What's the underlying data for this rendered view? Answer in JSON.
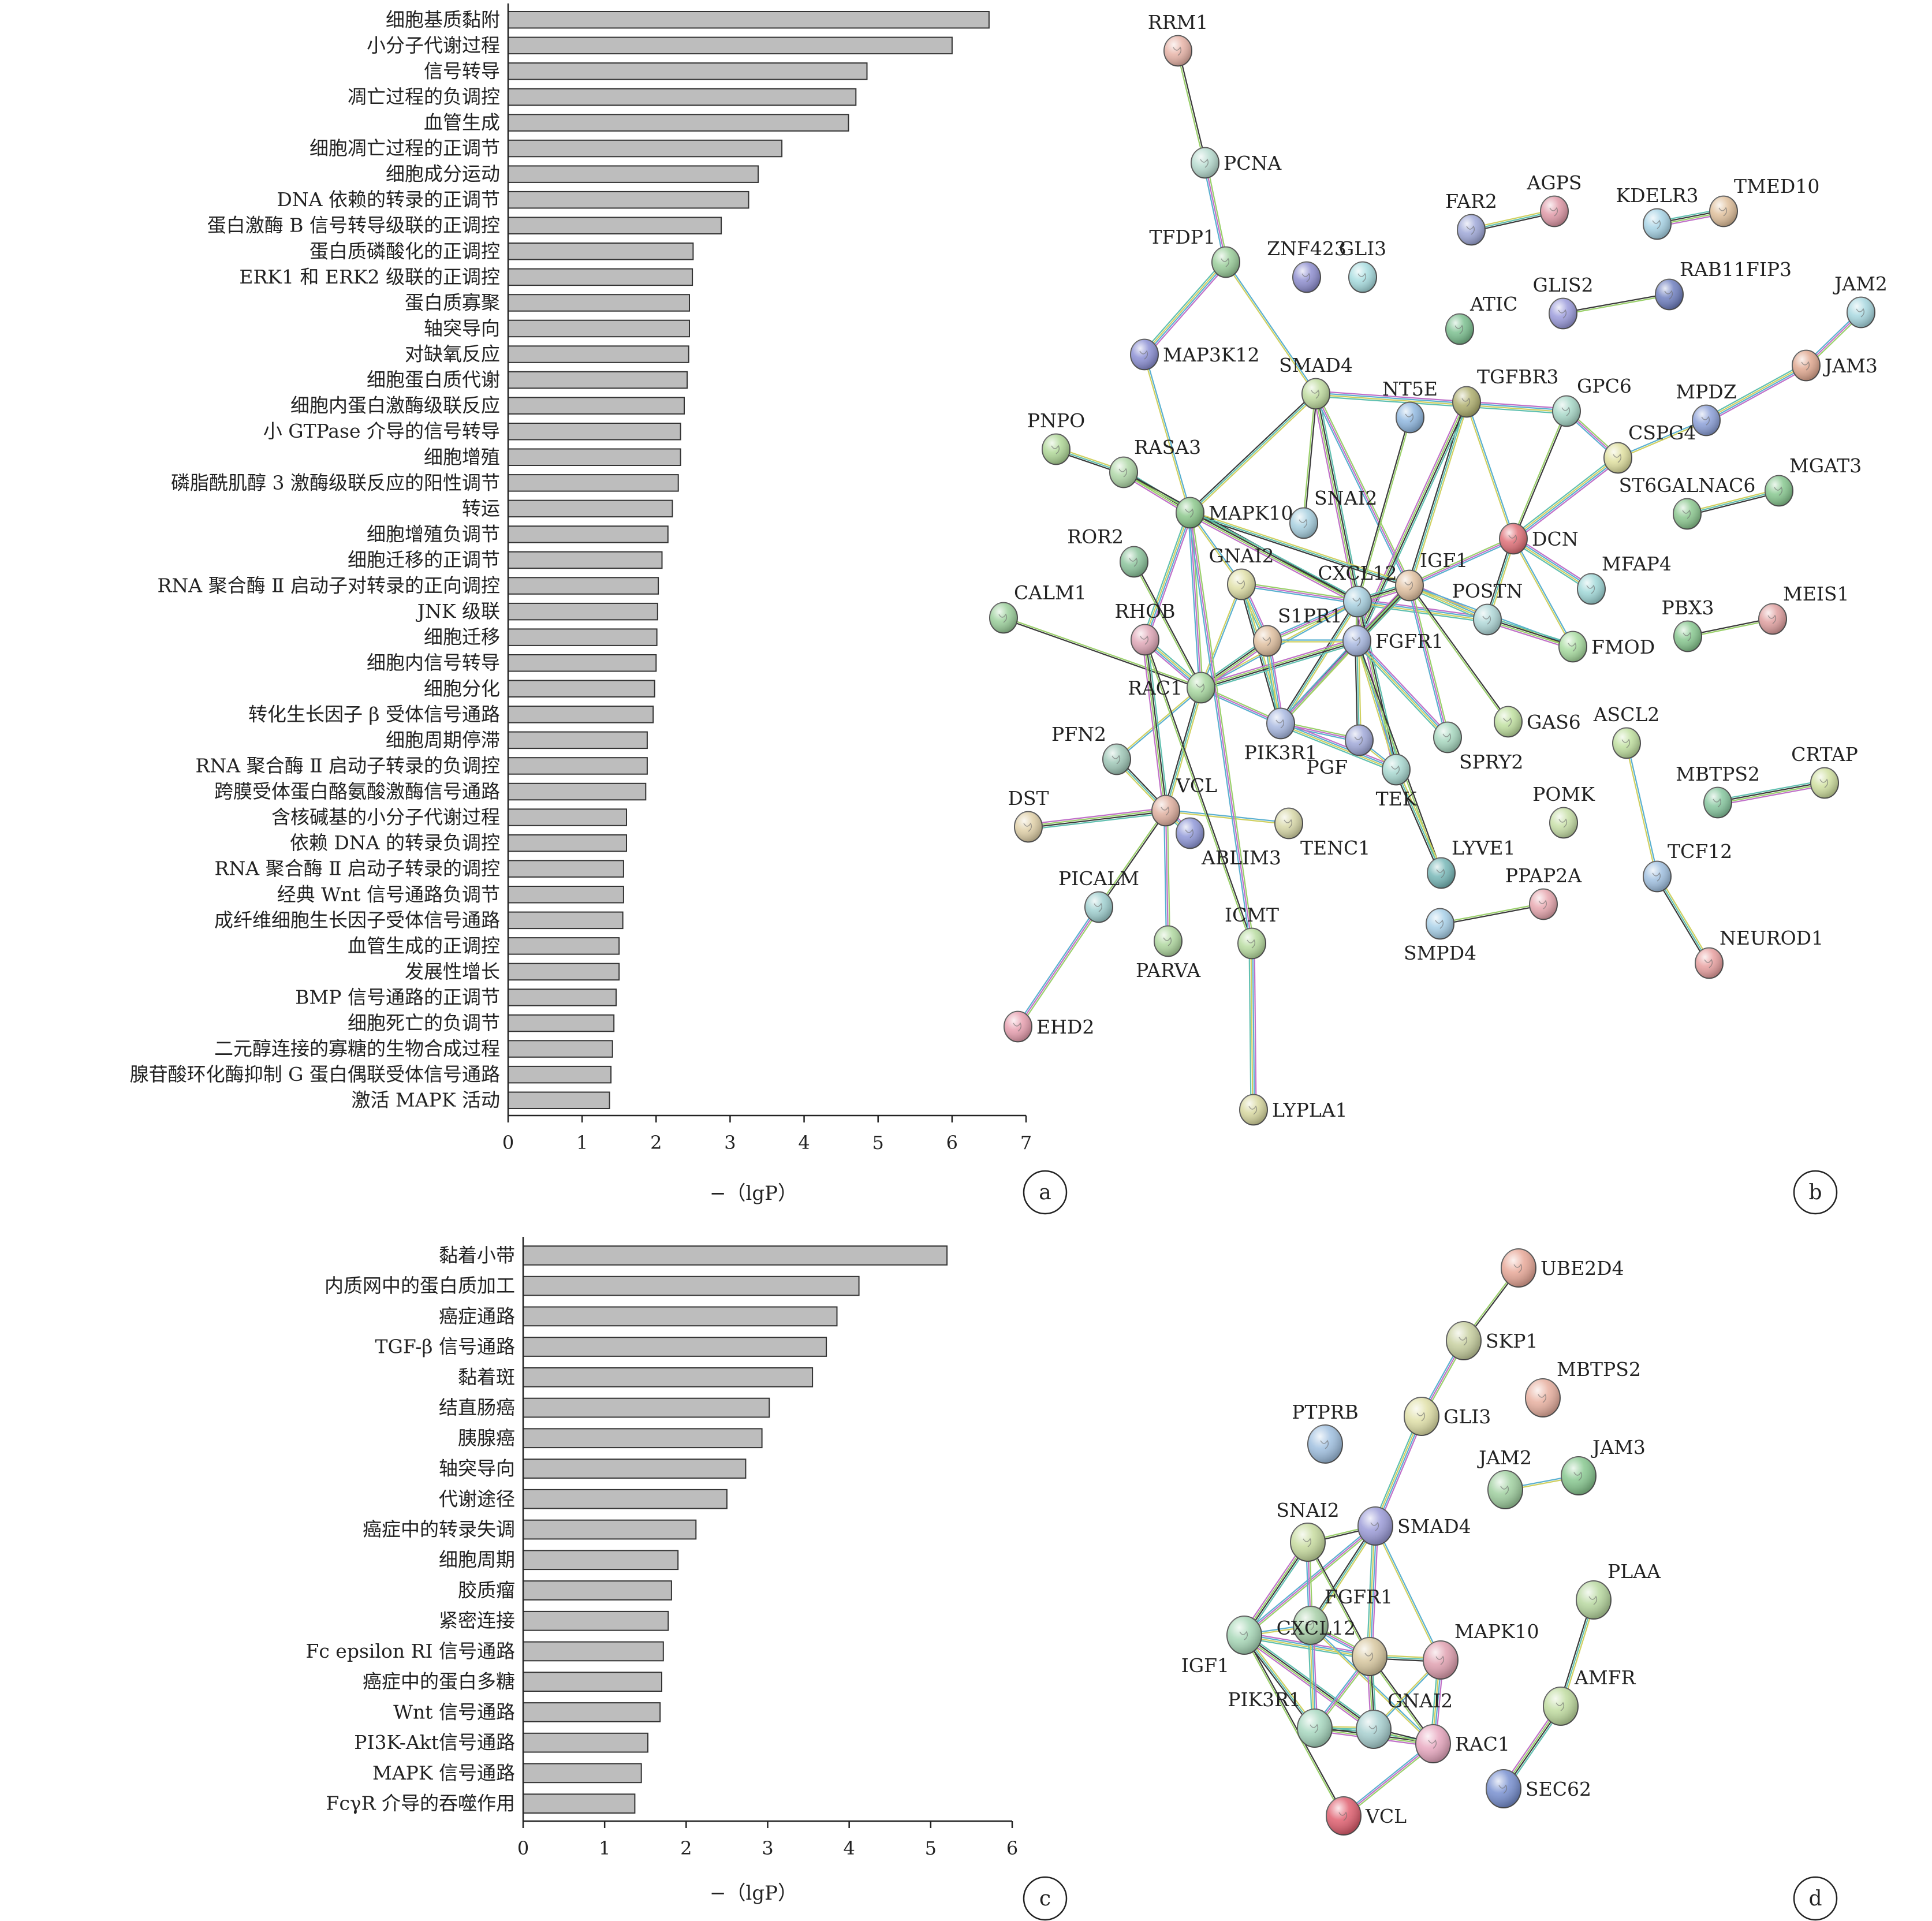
{
  "panels": [
    {
      "id": "a",
      "label": "a"
    },
    {
      "id": "b",
      "label": "b"
    },
    {
      "id": "c",
      "label": "c"
    },
    {
      "id": "d",
      "label": "d"
    }
  ],
  "chart_data": [
    {
      "panel": "a",
      "type": "bar",
      "orientation": "horizontal",
      "xlabel": "−（lg<i>P</i>）",
      "xlabel_text": "−（lgP）",
      "xlim": [
        0,
        7
      ],
      "xticks": [
        0,
        1,
        2,
        3,
        4,
        5,
        6,
        7
      ],
      "grid": false,
      "bar_color": "#bdbdbd",
      "categories": [
        "细胞基质黏附",
        "小分子代谢过程",
        "信号转导",
        "凋亡过程的负调控",
        "血管生成",
        "细胞凋亡过程的正调节",
        "细胞成分运动",
        "DNA 依赖的转录的正调节",
        "蛋白激酶 B 信号转导级联的正调控",
        "蛋白质磷酸化的正调控",
        "ERK1 和 ERK2 级联的正调控",
        "蛋白质寡聚",
        "轴突导向",
        "对缺氧反应",
        "细胞蛋白质代谢",
        "细胞内蛋白激酶级联反应",
        "小 GTPase 介导的信号转导",
        "细胞增殖",
        "磷脂酰肌醇 3 激酶级联反应的阳性调节",
        "转运",
        "细胞增殖负调节",
        "细胞迁移的正调节",
        "RNA 聚合酶 Ⅱ 启动子对转录的正向调控",
        "JNK 级联",
        "细胞迁移",
        "细胞内信号转导",
        "细胞分化",
        "转化生长因子 β 受体信号通路",
        "细胞周期停滞",
        "RNA 聚合酶 Ⅱ 启动子转录的负调控",
        "跨膜受体蛋白酪氨酸激酶信号通路",
        "含核碱基的小分子代谢过程",
        "依赖 DNA 的转录负调控",
        "RNA 聚合酶 Ⅱ 启动子转录的调控",
        "经典 Wnt 信号通路负调节",
        "成纤维细胞生长因子受体信号通路",
        "血管生成的正调控",
        "发展性增长",
        "BMP 信号通路的正调节",
        "细胞死亡的负调节",
        "二元醇连接的寡糖的生物合成过程",
        "腺苷酸环化酶抑制 G 蛋白偶联受体信号通路",
        "激活 MAPK 活动"
      ],
      "values": [
        6.5,
        6.0,
        4.85,
        4.7,
        4.6,
        3.7,
        3.38,
        3.25,
        2.88,
        2.5,
        2.49,
        2.45,
        2.45,
        2.44,
        2.42,
        2.38,
        2.33,
        2.33,
        2.3,
        2.22,
        2.16,
        2.08,
        2.03,
        2.02,
        2.01,
        2.0,
        1.98,
        1.96,
        1.88,
        1.88,
        1.86,
        1.6,
        1.6,
        1.56,
        1.56,
        1.55,
        1.5,
        1.5,
        1.46,
        1.43,
        1.41,
        1.39,
        1.37
      ]
    },
    {
      "panel": "c",
      "type": "bar",
      "orientation": "horizontal",
      "xlabel_text": "−（lgP）",
      "xlim": [
        0,
        6
      ],
      "xticks": [
        0,
        1,
        2,
        3,
        4,
        5,
        6
      ],
      "grid": false,
      "bar_color": "#bdbdbd",
      "categories": [
        "黏着小带",
        "内质网中的蛋白质加工",
        "癌症通路",
        "TGF-β 信号通路",
        "黏着斑",
        "结直肠癌",
        "胰腺癌",
        "轴突导向",
        "代谢途径",
        "癌症中的转录失调",
        "细胞周期",
        "胶质瘤",
        "紧密连接",
        "Fc epsilon RI 信号通路",
        "癌症中的蛋白多糖",
        "Wnt 信号通路",
        "PI3K-Akt信号通路",
        "MAPK 信号通路",
        "FcγR 介导的吞噬作用"
      ],
      "values": [
        5.2,
        4.12,
        3.85,
        3.72,
        3.55,
        3.02,
        2.93,
        2.73,
        2.5,
        2.12,
        1.9,
        1.82,
        1.78,
        1.72,
        1.7,
        1.68,
        1.53,
        1.45,
        1.37
      ]
    }
  ],
  "networks": {
    "b": {
      "nodes": [
        {
          "id": "RRM1",
          "color": "#e8b4a8",
          "label_side": "up"
        },
        {
          "id": "PCNA",
          "color": "#b8dcd0",
          "label_side": "right"
        },
        {
          "id": "TFDP1",
          "color": "#9ccf9c",
          "label_side": "upleft"
        },
        {
          "id": "ZNF423",
          "color": "#8f8fd0",
          "label_side": "up"
        },
        {
          "id": "GLI3",
          "color": "#a8dde0",
          "label_side": "up"
        },
        {
          "id": "FAR2",
          "color": "#9fa8d8",
          "label_side": "up"
        },
        {
          "id": "AGPS",
          "color": "#e09aa8",
          "label_side": "up"
        },
        {
          "id": "KDELR3",
          "color": "#a8d4e6",
          "label_side": "up"
        },
        {
          "id": "TMED10",
          "color": "#e0c09c",
          "label_side": "upright"
        },
        {
          "id": "GLIS2",
          "color": "#9c9cdc",
          "label_side": "up"
        },
        {
          "id": "RAB11FIP3",
          "color": "#7080c0",
          "label_side": "upright"
        },
        {
          "id": "JAM2",
          "color": "#a8d8e0",
          "label_side": "up"
        },
        {
          "id": "ATIC",
          "color": "#7cc090",
          "label_side": "upright"
        },
        {
          "id": "MAP3K12",
          "color": "#8c90d4",
          "label_side": "right"
        },
        {
          "id": "SMAD4",
          "color": "#c0dca0",
          "label_side": "up"
        },
        {
          "id": "JAM3",
          "color": "#e0a890",
          "label_side": "right"
        },
        {
          "id": "NT5E",
          "color": "#90b8e0",
          "label_side": "up"
        },
        {
          "id": "TGFBR3",
          "color": "#b0b070",
          "label_side": "upright"
        },
        {
          "id": "GPC6",
          "color": "#a8d8c8",
          "label_side": "upright"
        },
        {
          "id": "MPDZ",
          "color": "#8ca0d8",
          "label_side": "up"
        },
        {
          "id": "PNPO",
          "color": "#b0d898",
          "label_side": "up"
        },
        {
          "id": "CSPG4",
          "color": "#e0e0a0",
          "label_side": "upright"
        },
        {
          "id": "RASA3",
          "color": "#b0d8a8",
          "label_side": "upright"
        },
        {
          "id": "MGAT3",
          "color": "#88c890",
          "label_side": "upright"
        },
        {
          "id": "ST6GALNAC6",
          "color": "#8cc890",
          "label_side": "up"
        },
        {
          "id": "MAPK10",
          "color": "#8cc88c",
          "label_side": "right"
        },
        {
          "id": "SNAI2",
          "color": "#a8d0e0",
          "label_side": "upright"
        },
        {
          "id": "DCN",
          "color": "#e07078",
          "label_side": "right"
        },
        {
          "id": "ROR2",
          "color": "#8cc49c",
          "label_side": "upleft"
        },
        {
          "id": "GNAI2",
          "color": "#e0e0a8",
          "label_side": "up"
        },
        {
          "id": "CXCL12",
          "color": "#a8d0e0",
          "label_side": "up"
        },
        {
          "id": "IGF1",
          "color": "#e0c0a0",
          "label_side": "upright"
        },
        {
          "id": "MFAP4",
          "color": "#a0d8d8",
          "label_side": "upright"
        },
        {
          "id": "CALM1",
          "color": "#9cd09c",
          "label_side": "upright"
        },
        {
          "id": "POSTN",
          "color": "#b0d8d8",
          "label_side": "up"
        },
        {
          "id": "RHOB",
          "color": "#e0a8b8",
          "label_side": "up"
        },
        {
          "id": "S1PR1",
          "color": "#e0c0a0",
          "label_side": "upright"
        },
        {
          "id": "FGFR1",
          "color": "#a8b8e0",
          "label_side": "right"
        },
        {
          "id": "PBX3",
          "color": "#88c890",
          "label_side": "up"
        },
        {
          "id": "MEIS1",
          "color": "#e0a0a0",
          "label_side": "upright"
        },
        {
          "id": "FMOD",
          "color": "#a8dca0",
          "label_side": "right"
        },
        {
          "id": "RAC1",
          "color": "#a8d8a0",
          "label_side": "left"
        },
        {
          "id": "GAS6",
          "color": "#c0e0a0",
          "label_side": "right"
        },
        {
          "id": "PFN2",
          "color": "#a0c8b8",
          "label_side": "upleft"
        },
        {
          "id": "PIK3R1",
          "color": "#a8b8e0",
          "label_side": "down"
        },
        {
          "id": "PGF",
          "color": "#a0a8d8",
          "label_side": "downleft"
        },
        {
          "id": "SPRY2",
          "color": "#a8d8c0",
          "label_side": "downright"
        },
        {
          "id": "ASCL2",
          "color": "#c0e0a0",
          "label_side": "up"
        },
        {
          "id": "TEK",
          "color": "#a8d8d0",
          "label_side": "down"
        },
        {
          "id": "CRTAP",
          "color": "#d0e0a0",
          "label_side": "up"
        },
        {
          "id": "MBTPS2",
          "color": "#88c8a0",
          "label_side": "up"
        },
        {
          "id": "DST",
          "color": "#e0d0a8",
          "label_side": "up"
        },
        {
          "id": "VCL",
          "color": "#e0b0a0",
          "label_side": "upright"
        },
        {
          "id": "POMK",
          "color": "#c8e0a8",
          "label_side": "up"
        },
        {
          "id": "TENC1",
          "color": "#d8d8a8",
          "label_side": "downright"
        },
        {
          "id": "ABLIM3",
          "color": "#9098d8",
          "label_side": "downright"
        },
        {
          "id": "TCF12",
          "color": "#a0c0e0",
          "label_side": "upright"
        },
        {
          "id": "LYVE1",
          "color": "#78b8b8",
          "label_side": "upright"
        },
        {
          "id": "PICALM",
          "color": "#a0d0d0",
          "label_side": "up"
        },
        {
          "id": "PPAP2A",
          "color": "#e8a8b0",
          "label_side": "up"
        },
        {
          "id": "ICMT",
          "color": "#b8dca0",
          "label_side": "up"
        },
        {
          "id": "SMPD4",
          "color": "#a8d0e8",
          "label_side": "down"
        },
        {
          "id": "PARVA",
          "color": "#b0d8a0",
          "label_side": "down"
        },
        {
          "id": "NEUROD1",
          "color": "#e8a0a0",
          "label_side": "upright"
        },
        {
          "id": "EHD2",
          "color": "#e8a0b0",
          "label_side": "right"
        },
        {
          "id": "LYPLA1",
          "color": "#d8d8a0",
          "label_side": "right"
        }
      ],
      "edges": [
        [
          "RRM1",
          "PCNA"
        ],
        [
          "PCNA",
          "TFDP1"
        ],
        [
          "TFDP1",
          "MAP3K12"
        ],
        [
          "TFDP1",
          "SMAD4"
        ],
        [
          "FAR2",
          "AGPS"
        ],
        [
          "KDELR3",
          "TMED10"
        ],
        [
          "GLIS2",
          "RAB11FIP3"
        ],
        [
          "JAM2",
          "JAM3"
        ],
        [
          "JAM3",
          "MPDZ"
        ],
        [
          "MAP3K12",
          "MAPK10"
        ],
        [
          "SMAD4",
          "MAPK10"
        ],
        [
          "SMAD4",
          "CXCL12"
        ],
        [
          "SMAD4",
          "SNAI2"
        ],
        [
          "SMAD4",
          "IGF1"
        ],
        [
          "SMAD4",
          "GPC6"
        ],
        [
          "TGFBR3",
          "DCN"
        ],
        [
          "TGFBR3",
          "IGF1"
        ],
        [
          "TGFBR3",
          "FGFR1"
        ],
        [
          "GPC6",
          "DCN"
        ],
        [
          "GPC6",
          "CSPG4"
        ],
        [
          "CSPG4",
          "DCN"
        ],
        [
          "CSPG4",
          "MPDZ"
        ],
        [
          "PNPO",
          "RASA3"
        ],
        [
          "RASA3",
          "MAPK10"
        ],
        [
          "RASA3",
          "CXCL12"
        ],
        [
          "MAPK10",
          "RAC1"
        ],
        [
          "MAPK10",
          "RHOB"
        ],
        [
          "MAPK10",
          "GNAI2"
        ],
        [
          "MAPK10",
          "IGF1"
        ],
        [
          "MAPK10",
          "CXCL12"
        ],
        [
          "ROR2",
          "RAC1"
        ],
        [
          "GNAI2",
          "CXCL12"
        ],
        [
          "GNAI2",
          "S1PR1"
        ],
        [
          "GNAI2",
          "RAC1"
        ],
        [
          "GNAI2",
          "PIK3R1"
        ],
        [
          "CXCL12",
          "IGF1"
        ],
        [
          "CXCL12",
          "FGFR1"
        ],
        [
          "CXCL12",
          "S1PR1"
        ],
        [
          "CXCL12",
          "POSTN"
        ],
        [
          "CXCL12",
          "RAC1"
        ],
        [
          "CXCL12",
          "PIK3R1"
        ],
        [
          "CXCL12",
          "TEK"
        ],
        [
          "CXCL12",
          "NT5E"
        ],
        [
          "IGF1",
          "DCN"
        ],
        [
          "IGF1",
          "POSTN"
        ],
        [
          "IGF1",
          "FMOD"
        ],
        [
          "IGF1",
          "PIK3R1"
        ],
        [
          "IGF1",
          "FGFR1"
        ],
        [
          "IGF1",
          "GAS6"
        ],
        [
          "IGF1",
          "SPRY2"
        ],
        [
          "DCN",
          "MFAP4"
        ],
        [
          "DCN",
          "FMOD"
        ],
        [
          "DCN",
          "POSTN"
        ],
        [
          "POSTN",
          "FMOD"
        ],
        [
          "PBX3",
          "MEIS1"
        ],
        [
          "FGFR1",
          "PIK3R1"
        ],
        [
          "FGFR1",
          "SPRY2"
        ],
        [
          "FGFR1",
          "TEK"
        ],
        [
          "FGFR1",
          "PGF"
        ],
        [
          "FGFR1",
          "RAC1"
        ],
        [
          "FGFR1",
          "LYVE1"
        ],
        [
          "RAC1",
          "PIK3R1"
        ],
        [
          "RAC1",
          "RHOB"
        ],
        [
          "RAC1",
          "PFN2"
        ],
        [
          "RAC1",
          "VCL"
        ],
        [
          "RAC1",
          "S1PR1"
        ],
        [
          "RAC1",
          "CALM1"
        ],
        [
          "PIK3R1",
          "PGF"
        ],
        [
          "PIK3R1",
          "TEK"
        ],
        [
          "PGF",
          "TEK"
        ],
        [
          "TEK",
          "LYVE1"
        ],
        [
          "VCL",
          "DST"
        ],
        [
          "VCL",
          "PICALM"
        ],
        [
          "VCL",
          "PARVA"
        ],
        [
          "VCL",
          "ABLIM3"
        ],
        [
          "VCL",
          "TENC1"
        ],
        [
          "VCL",
          "PFN2"
        ],
        [
          "RHOB",
          "VCL"
        ],
        [
          "RHOB",
          "ICMT"
        ],
        [
          "PICALM",
          "EHD2"
        ],
        [
          "ICMT",
          "LYPLA1"
        ],
        [
          "ASCL2",
          "TCF12"
        ],
        [
          "TCF12",
          "NEUROD1"
        ],
        [
          "MBTPS2",
          "CRTAP"
        ],
        [
          "PPAP2A",
          "SMPD4"
        ],
        [
          "MAPK10",
          "ICMT"
        ],
        [
          "S1PR1",
          "PIK3R1"
        ],
        [
          "S1PR1",
          "FGFR1"
        ],
        [
          "ST6GALNAC6",
          "MGAT3"
        ]
      ]
    },
    "d": {
      "nodes": [
        {
          "id": "UBE2D4",
          "color": "#e8a898",
          "label_side": "right"
        },
        {
          "id": "SKP1",
          "color": "#c8d0a0",
          "label_side": "right"
        },
        {
          "id": "MBTPS2",
          "color": "#e8b0a0",
          "label_side": "upright"
        },
        {
          "id": "PTPRB",
          "color": "#a0c0e0",
          "label_side": "up"
        },
        {
          "id": "GLI3",
          "color": "#e0e0a8",
          "label_side": "right"
        },
        {
          "id": "JAM2",
          "color": "#a0d0a0",
          "label_side": "up"
        },
        {
          "id": "JAM3",
          "color": "#88c890",
          "label_side": "upright"
        },
        {
          "id": "SNAI2",
          "color": "#c8dca0",
          "label_side": "up"
        },
        {
          "id": "SMAD4",
          "color": "#9c9cd8",
          "label_side": "right"
        },
        {
          "id": "PLAA",
          "color": "#b8d8a0",
          "label_side": "upright"
        },
        {
          "id": "FGFR1",
          "color": "#a8d0a8",
          "label_side": "upright"
        },
        {
          "id": "CXCL12",
          "color": "#d8c8a0",
          "label_side": "upleft"
        },
        {
          "id": "MAPK10",
          "color": "#e0a0b0",
          "label_side": "upright"
        },
        {
          "id": "IGF1",
          "color": "#a8d8b8",
          "label_side": "downleft"
        },
        {
          "id": "AMFR",
          "color": "#c0dca0",
          "label_side": "upright"
        },
        {
          "id": "PIK3R1",
          "color": "#a8d8c0",
          "label_side": "upleft"
        },
        {
          "id": "GNAI2",
          "color": "#a8d0d0",
          "label_side": "upright"
        },
        {
          "id": "RAC1",
          "color": "#e8a8c0",
          "label_side": "right"
        },
        {
          "id": "SEC62",
          "color": "#7890d0",
          "label_side": "right"
        },
        {
          "id": "VCL",
          "color": "#e06070",
          "label_side": "right"
        }
      ],
      "edges": [
        [
          "UBE2D4",
          "SKP1"
        ],
        [
          "SKP1",
          "GLI3"
        ],
        [
          "GLI3",
          "SMAD4"
        ],
        [
          "JAM2",
          "JAM3"
        ],
        [
          "PLAA",
          "AMFR"
        ],
        [
          "AMFR",
          "SEC62"
        ],
        [
          "SMAD4",
          "SNAI2"
        ],
        [
          "SMAD4",
          "IGF1"
        ],
        [
          "SMAD4",
          "CXCL12"
        ],
        [
          "SMAD4",
          "MAPK10"
        ],
        [
          "SMAD4",
          "FGFR1"
        ],
        [
          "SNAI2",
          "IGF1"
        ],
        [
          "SNAI2",
          "CXCL12"
        ],
        [
          "SNAI2",
          "FGFR1"
        ],
        [
          "IGF1",
          "CXCL12"
        ],
        [
          "IGF1",
          "FGFR1"
        ],
        [
          "IGF1",
          "PIK3R1"
        ],
        [
          "IGF1",
          "GNAI2"
        ],
        [
          "IGF1",
          "VCL"
        ],
        [
          "FGFR1",
          "CXCL12"
        ],
        [
          "FGFR1",
          "PIK3R1"
        ],
        [
          "FGFR1",
          "RAC1"
        ],
        [
          "CXCL12",
          "MAPK10"
        ],
        [
          "CXCL12",
          "GNAI2"
        ],
        [
          "CXCL12",
          "RAC1"
        ],
        [
          "CXCL12",
          "PIK3R1"
        ],
        [
          "MAPK10",
          "RAC1"
        ],
        [
          "MAPK10",
          "GNAI2"
        ],
        [
          "PIK3R1",
          "GNAI2"
        ],
        [
          "PIK3R1",
          "RAC1"
        ],
        [
          "GNAI2",
          "RAC1"
        ],
        [
          "RAC1",
          "VCL"
        ]
      ]
    }
  }
}
